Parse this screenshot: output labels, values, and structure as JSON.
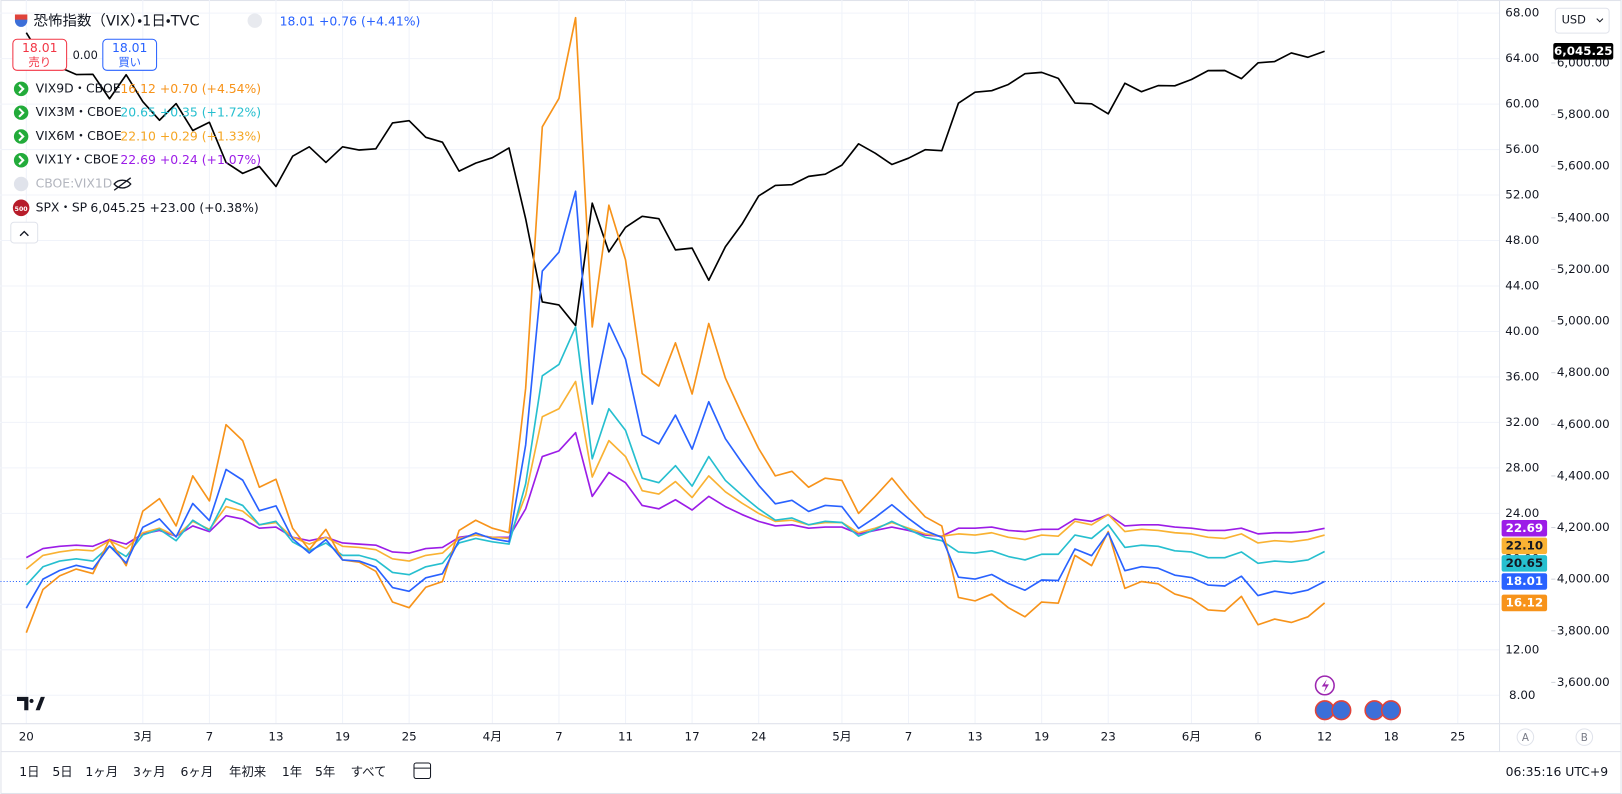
{
  "chart_data": {
    "type": "line",
    "categories": [
      "20",
      null,
      null,
      null,
      null,
      null,
      null,
      "3月",
      null,
      null,
      null,
      "7",
      null,
      null,
      null,
      "13",
      null,
      null,
      null,
      "19",
      null,
      null,
      null,
      "25",
      null,
      null,
      null,
      null,
      "4月",
      null,
      null,
      null,
      "7",
      null,
      null,
      null,
      "11",
      null,
      null,
      null,
      "17",
      null,
      null,
      null,
      "24",
      null,
      null,
      null,
      null,
      "5月",
      null,
      null,
      null,
      "7",
      null,
      null,
      null,
      "13",
      null,
      null,
      null,
      "19",
      null,
      null,
      null,
      "23",
      null,
      null,
      null,
      null,
      "6月",
      null,
      null,
      null,
      "6",
      null,
      null,
      null,
      "12",
      null,
      null,
      null,
      "18",
      null,
      null,
      null,
      "25"
    ],
    "series": [
      {
        "name": "恐怖指数（VIX）・1日・TVC",
        "color": "#2962ff",
        "last_label": "18.01",
        "change": "+0.76 (+4.41%)",
        "price_line": true,
        "values": [
          15.66,
          18.21,
          18.98,
          19.43,
          19.1,
          21.13,
          19.63,
          22.78,
          23.51,
          21.93,
          24.87,
          23.37,
          27.86,
          26.92,
          24.23,
          24.66,
          21.77,
          20.51,
          21.7,
          19.9,
          19.8,
          19.28,
          17.48,
          17.15,
          18.33,
          18.69,
          21.65,
          22.28,
          21.77,
          21.51,
          30.02,
          45.31,
          46.98,
          52.33,
          33.62,
          40.72,
          37.56,
          30.89,
          30.12,
          32.64,
          29.65,
          33.82,
          30.57,
          28.45,
          26.47,
          24.84,
          25.15,
          24.17,
          24.7,
          24.6,
          22.68,
          23.64,
          24.76,
          23.55,
          22.48,
          21.9,
          18.39,
          18.22,
          18.62,
          17.83,
          17.24,
          18.14,
          18.09,
          20.87,
          20.28,
          22.29,
          18.96,
          19.31,
          19.18,
          18.57,
          18.36,
          17.69,
          17.61,
          18.48,
          16.77,
          17.16,
          16.95,
          17.26,
          18.01,
          null,
          null,
          null,
          null,
          null,
          null,
          null,
          null
        ]
      },
      {
        "name": "VIX9D・CBOE",
        "color": "#f7931a",
        "last_label": "16.12",
        "change": "+0.70 (+4.54%)",
        "values": [
          13.5,
          17.3,
          18.5,
          19.1,
          18.7,
          21.7,
          19.4,
          24.2,
          25.3,
          22.9,
          27.3,
          25.1,
          31.8,
          30.4,
          26.3,
          27.0,
          22.7,
          20.8,
          22.6,
          19.9,
          19.7,
          18.9,
          16.2,
          15.7,
          17.5,
          18.0,
          22.5,
          23.4,
          22.7,
          22.3,
          35.0,
          58.0,
          60.5,
          67.6,
          40.4,
          51.1,
          46.3,
          36.3,
          35.2,
          39.0,
          34.5,
          40.7,
          35.9,
          32.7,
          29.7,
          27.3,
          27.7,
          26.3,
          27.1,
          26.9,
          24.0,
          25.5,
          27.1,
          25.3,
          23.7,
          22.9,
          16.6,
          16.3,
          16.9,
          15.7,
          14.9,
          16.2,
          16.1,
          20.3,
          19.4,
          22.4,
          17.4,
          18.0,
          17.8,
          16.9,
          16.5,
          15.5,
          15.4,
          16.7,
          14.2,
          14.7,
          14.4,
          14.9,
          16.12,
          null,
          null,
          null,
          null,
          null,
          null,
          null,
          null
        ]
      },
      {
        "name": "VIX3M・CBOE",
        "color": "#26bfcf",
        "badge_text": "#131722",
        "last_label": "20.65",
        "change": "+0.35 (+1.72%)",
        "values": [
          17.7,
          19.3,
          19.8,
          20.0,
          19.8,
          21.1,
          20.2,
          22.1,
          22.6,
          21.6,
          23.4,
          22.5,
          25.3,
          24.7,
          23.0,
          23.3,
          21.5,
          20.7,
          21.4,
          20.3,
          20.3,
          19.9,
          18.8,
          18.6,
          19.3,
          19.6,
          21.4,
          21.8,
          21.5,
          21.3,
          26.6,
          36.1,
          37.1,
          40.4,
          28.8,
          33.2,
          31.3,
          27.1,
          26.7,
          28.2,
          26.4,
          29.0,
          26.9,
          25.6,
          24.4,
          23.4,
          23.6,
          23.0,
          23.3,
          23.2,
          22.0,
          22.6,
          23.3,
          22.6,
          21.9,
          21.6,
          20.6,
          20.5,
          20.7,
          20.2,
          19.9,
          20.4,
          20.4,
          22.1,
          21.8,
          23.0,
          21.0,
          21.2,
          21.1,
          20.7,
          20.6,
          20.1,
          20.1,
          20.6,
          19.6,
          19.8,
          19.7,
          19.9,
          20.65,
          null,
          null,
          null,
          null,
          null,
          null,
          null,
          null
        ]
      },
      {
        "name": "VIX6M・CBOE",
        "color": "#f9b233",
        "badge_text": "#131722",
        "last_label": "22.10",
        "change": "+0.29 (+1.33%)",
        "values": [
          19.1,
          20.3,
          20.6,
          20.8,
          20.7,
          21.6,
          20.9,
          22.3,
          22.7,
          22.0,
          23.3,
          22.6,
          24.6,
          24.2,
          23.0,
          23.2,
          21.9,
          21.3,
          21.9,
          21.1,
          21.0,
          20.8,
          20.0,
          19.8,
          20.3,
          20.5,
          21.8,
          22.1,
          21.9,
          21.8,
          25.6,
          32.5,
          33.2,
          35.6,
          27.2,
          30.4,
          29.0,
          26.0,
          25.7,
          26.8,
          25.4,
          27.3,
          25.9,
          24.9,
          24.0,
          23.3,
          23.4,
          23.0,
          23.2,
          23.2,
          22.3,
          22.7,
          23.2,
          22.7,
          22.2,
          22.0,
          22.2,
          22.1,
          22.3,
          21.9,
          21.7,
          22.1,
          22.0,
          23.3,
          23.0,
          23.9,
          22.4,
          22.6,
          22.5,
          22.3,
          22.2,
          21.9,
          21.8,
          22.2,
          21.4,
          21.6,
          21.5,
          21.7,
          22.1,
          null,
          null,
          null,
          null,
          null,
          null,
          null,
          null
        ]
      },
      {
        "name": "VIX1Y・CBOE",
        "color": "#9c1de7",
        "last_label": "22.69",
        "change": "+0.24 (+1.07%)",
        "values": [
          20.1,
          20.9,
          21.1,
          21.2,
          21.1,
          21.7,
          21.3,
          22.2,
          22.5,
          22.0,
          22.9,
          22.4,
          23.8,
          23.5,
          22.7,
          22.8,
          21.9,
          21.6,
          21.9,
          21.4,
          21.3,
          21.2,
          20.6,
          20.5,
          20.9,
          21.0,
          21.9,
          22.1,
          21.9,
          21.9,
          24.4,
          29.0,
          29.5,
          31.1,
          25.5,
          27.6,
          26.7,
          24.7,
          24.4,
          25.2,
          24.3,
          25.5,
          24.6,
          23.9,
          23.3,
          22.9,
          23.0,
          22.7,
          22.8,
          22.8,
          22.2,
          22.5,
          22.8,
          22.5,
          22.1,
          22.0,
          22.7,
          22.7,
          22.8,
          22.5,
          22.4,
          22.6,
          22.6,
          23.5,
          23.3,
          23.9,
          22.9,
          23.0,
          23.0,
          22.8,
          22.7,
          22.5,
          22.5,
          22.7,
          22.2,
          22.3,
          22.3,
          22.4,
          22.69,
          null,
          null,
          null,
          null,
          null,
          null,
          null,
          null
        ]
      },
      {
        "name": "SPX・SP",
        "color": "#000000",
        "axis": "y2",
        "last_label": "6,045.25",
        "change": "+23.00 (+0.38%)",
        "values": [
          6117.52,
          6013.13,
          5983.25,
          5955.25,
          5956.06,
          5861.57,
          5954.5,
          5849.72,
          5778.15,
          5842.63,
          5738.52,
          5770.2,
          5614.56,
          5572.07,
          5599.3,
          5521.52,
          5638.94,
          5675.12,
          5614.66,
          5675.29,
          5662.89,
          5667.56,
          5767.57,
          5776.65,
          5712.2,
          5693.31,
          5580.94,
          5611.85,
          5633.07,
          5670.97,
          5396.52,
          5074.08,
          5062.25,
          4982.77,
          5456.9,
          5268.05,
          5363.36,
          5405.97,
          5396.63,
          5275.7,
          5282.7,
          5158.2,
          5287.76,
          5375.86,
          5484.77,
          5525.21,
          5528.75,
          5560.83,
          5569.06,
          5604.14,
          5686.67,
          5650.38,
          5606.91,
          5631.28,
          5663.94,
          5659.91,
          5844.19,
          5886.55,
          5892.58,
          5916.93,
          5958.38,
          5963.6,
          5940.46,
          5844.61,
          5842.01,
          5802.82,
          5921.54,
          5888.55,
          5912.17,
          5911.69,
          5935.94,
          5970.37,
          5970.81,
          5939.3,
          6000.36,
          6005.88,
          6038.81,
          6022.24,
          6045.25,
          null,
          null,
          null,
          null,
          null,
          null,
          null,
          null
        ]
      }
    ],
    "ylim": [
      5.5,
      68.7
    ],
    "yticks": [
      {
        "value": 8,
        "label": "8.00"
      },
      {
        "value": 12,
        "label": "12.00"
      },
      {
        "value": 16,
        "label": "16.00"
      },
      {
        "value": 20,
        "label": "20.00"
      },
      {
        "value": 24,
        "label": "24.00"
      },
      {
        "value": 28,
        "label": "28.00"
      },
      {
        "value": 32,
        "label": "32.00"
      },
      {
        "value": 36,
        "label": "36.00"
      },
      {
        "value": 40,
        "label": "40.00"
      },
      {
        "value": 44,
        "label": "44.00"
      },
      {
        "value": 48,
        "label": "48.00"
      },
      {
        "value": 52,
        "label": "52.00"
      },
      {
        "value": 56,
        "label": "56.00"
      },
      {
        "value": 60,
        "label": "60.00"
      },
      {
        "value": 64,
        "label": "64.00"
      },
      {
        "value": 68,
        "label": "68.00"
      }
    ],
    "y2lim": [
      3440,
      6224
    ],
    "y2ticks": [
      {
        "value": 3600,
        "label": "3,600.00"
      },
      {
        "value": 3800,
        "label": "3,800.00"
      },
      {
        "value": 4000,
        "label": "4,000.00"
      },
      {
        "value": 4200,
        "label": "4,200.00"
      },
      {
        "value": 4400,
        "label": "4,400.00"
      },
      {
        "value": 4600,
        "label": "4,600.00"
      },
      {
        "value": 4800,
        "label": "4,800.00"
      },
      {
        "value": 5000,
        "label": "5,000.00"
      },
      {
        "value": 5200,
        "label": "5,200.00"
      },
      {
        "value": 5400,
        "label": "5,400.00"
      },
      {
        "value": 5600,
        "label": "5,600.00"
      },
      {
        "value": 5800,
        "label": "5,800.00"
      },
      {
        "value": 6000,
        "label": "6,000.00"
      }
    ],
    "grid": true
  },
  "ui": {
    "sell_price": "18.01",
    "sell": "売り",
    "spread": "0.00",
    "buy_price": "18.01",
    "buy": "買い",
    "hidden_series": "CBOE:VIX1D",
    "spx_icon": "500",
    "currency": "USD",
    "scale_buttons": [
      "A",
      "B"
    ],
    "ranges": [
      "1日",
      "5日",
      "1ヶ月",
      "3ヶ月",
      "6ヶ月",
      "年初来",
      "1年",
      "5年",
      "すべて"
    ],
    "clock": "06:35:16 UTC+9"
  }
}
